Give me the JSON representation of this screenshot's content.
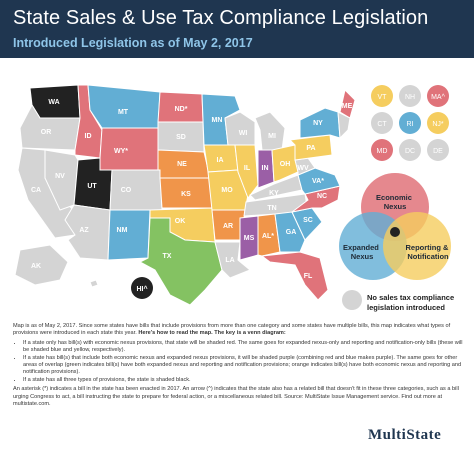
{
  "header": {
    "title": "State Sales & Use Tax Compliance Legislation",
    "subtitle": "Introduced Legislation as of May 2, 2017"
  },
  "colors": {
    "header_bg": "#1f3650",
    "economic_nexus": "#e0737a",
    "expanded_nexus": "#62aed4",
    "reporting_notification": "#f5cd5f",
    "economic_and_expanded": "#9b5fa6",
    "expanded_and_reporting": "#84c262",
    "economic_and_reporting": "#f0954a",
    "all_three": "#222222",
    "none": "#d4d4d4"
  },
  "map_labels": {
    "WA": "WA",
    "OR": "OR",
    "CA": "CA",
    "ID": "ID",
    "NV": "NV",
    "UT": "UT",
    "AZ": "AZ",
    "MT": "MT",
    "WY": "WY*",
    "CO": "CO",
    "NM": "NM",
    "ND": "ND*",
    "SD": "SD",
    "NE": "NE",
    "KS": "KS",
    "OK": "OK",
    "TX": "TX",
    "MN": "MN",
    "IA": "IA",
    "MO": "MO",
    "AR": "AR",
    "LA": "LA",
    "WI": "WI",
    "IL": "IL",
    "MI": "MI",
    "IN": "IN",
    "OH": "OH",
    "KY": "KY",
    "TN": "TN",
    "MS": "MS",
    "AL": "AL*",
    "GA": "GA",
    "FL": "FL",
    "SC": "SC",
    "NC": "NC",
    "VA": "VA*",
    "WV": "WV",
    "PA": "PA",
    "NY": "NY",
    "ME": "ME",
    "AK": "AK",
    "HI": "HI^"
  },
  "small_states": {
    "row1": [
      "VT",
      "NH",
      "MA^"
    ],
    "row2": [
      "CT",
      "RI",
      "NJ*"
    ],
    "row3": [
      "MD",
      "DC",
      "DE"
    ]
  },
  "venn": {
    "economic": "Economic Nexus",
    "expanded": "Expanded Nexus",
    "reporting": "Reporting & Notification"
  },
  "legend_none": "No sales tax compliance legislation introduced",
  "notes": {
    "intro": "Map is as of May 2, 2017. Since some states have bills that include provisions from more than one category and some states have multiple bills, this map indicates what types of provisions were introduced in each state this year.",
    "intro_bold": "Here's how to read the map. The key is a venn diagram:",
    "bullets": [
      "If a state only has bill(s) with economic nexus provisions, that state will be shaded red. The same goes for expanded nexus-only and reporting and notification-only bills (these will be shaded blue and yellow, respectively).",
      "If a state has bill(s) that include both economic nexus and expanded nexus provisions, it will be shaded purple (combining red and blue makes purple). The same goes for other areas of overlap (green indicates bill(s) have both expanded nexus and reporting and notification provisions; orange indicates bill(s) have both economic nexus and reporting and notification provisions).",
      "If a state has all three types of provisions, the state is shaded black."
    ],
    "asterisk": "An asterisk (*) indicates a bill in the state has been enacted in 2017. An arrow (^) indicates that the state also has a related bill that doesn't fit in these three categories, such as a bill urging Congress to act, a bill instructing the state to prepare for federal action, or a miscellaneous related bill. Source: MultiState Issue Management service. Find out more at multistate.com."
  },
  "logo": "MultiState"
}
